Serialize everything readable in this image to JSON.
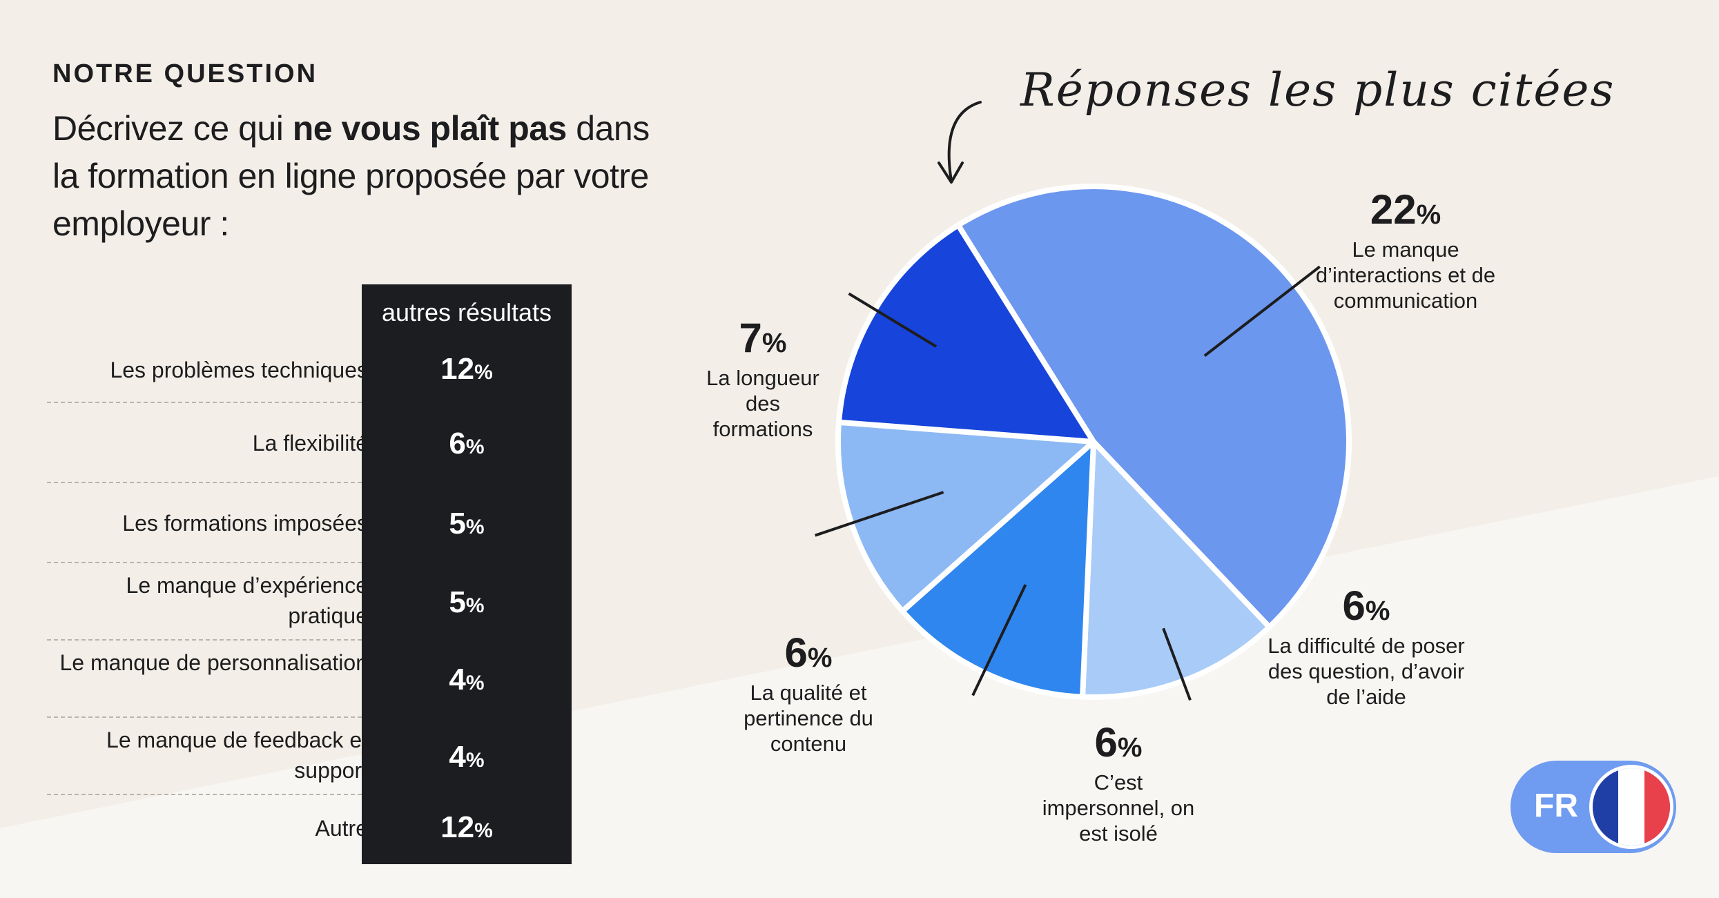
{
  "eyebrow": "NOTRE QUESTION",
  "question": {
    "part1": "Décrivez ce qui ",
    "bold": "ne vous plaît pas",
    "part2": " dans la formation en ligne proposée par votre employeur :"
  },
  "table": {
    "header": "autres résultats",
    "rows": [
      {
        "label": "Les problèmes techniques",
        "value": "12",
        "unit": "%"
      },
      {
        "label": "La flexibilité",
        "value": "6",
        "unit": "%"
      },
      {
        "label": "Les formations imposées",
        "value": "5",
        "unit": "%"
      },
      {
        "label": "Le manque d’expérience pratique",
        "value": "5",
        "unit": "%"
      },
      {
        "label": "Le manque de personnalisation",
        "value": "4",
        "unit": "%"
      },
      {
        "label": "Le manque de feedback et support",
        "value": "4",
        "unit": "%"
      },
      {
        "label": "Autre",
        "value": "12",
        "unit": "%"
      }
    ]
  },
  "chart_data": {
    "type": "pie",
    "title": "Réponses les plus citées",
    "slices": [
      {
        "value": 22,
        "label": "Le manque d’interactions et de communication",
        "color": "#6c97ef"
      },
      {
        "value": 6,
        "label": "La difficulté de poser des question, d’avoir de l’aide",
        "color": "#a9cbf8"
      },
      {
        "value": 6,
        "label": "C’est impersonnel, on est isolé",
        "color": "#2f86ee"
      },
      {
        "value": 6,
        "label": "La qualité et pertinence du contenu",
        "color": "#8cb9f4"
      },
      {
        "value": 7,
        "label": "La longueur des formations",
        "color": "#1744db"
      }
    ],
    "unit": "%"
  },
  "badge": {
    "label": "FR",
    "flag_colors": [
      "#1f3fa6",
      "#ffffff",
      "#e8414b"
    ]
  },
  "colors": {
    "background": "#f3efe8",
    "table_bg": "#1c1d21",
    "accent": "#6f9bf0"
  }
}
